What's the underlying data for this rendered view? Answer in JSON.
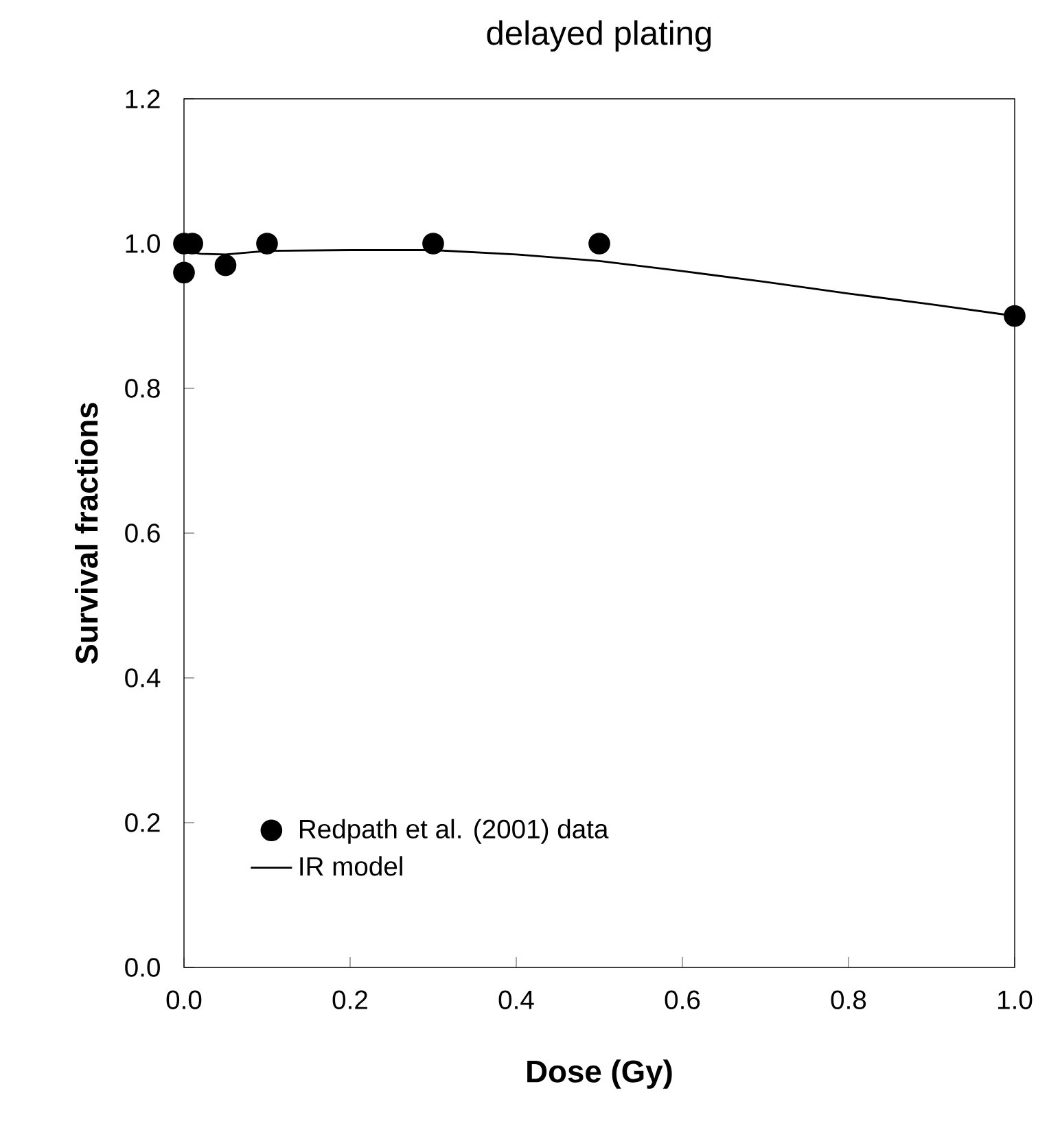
{
  "chart_data": {
    "type": "scatter",
    "title": "delayed plating",
    "xlabel": "Dose (Gy)",
    "ylabel": "Survival fractions",
    "xlim": [
      0,
      1.0
    ],
    "ylim": [
      0,
      1.2
    ],
    "xticks": [
      {
        "value": 0,
        "label": "0.0"
      },
      0.2,
      0.4,
      0.6,
      0.8,
      {
        "value": 1.0,
        "label": "1.0"
      }
    ],
    "yticks": [
      {
        "value": 0,
        "label": "0.0"
      },
      0.2,
      0.4,
      0.6,
      0.8,
      {
        "value": 1.0,
        "label": "1.0"
      },
      1.2
    ],
    "legend": "bottom left",
    "grid": false,
    "series": [
      {
        "name": "Redpath et al. (2001) data",
        "marker": "circle",
        "color": "#000000",
        "x": [
          0,
          0,
          0.01,
          0.05,
          0.1,
          0.3,
          0.5,
          1.0
        ],
        "values": [
          1.0,
          0.96,
          1.0,
          0.97,
          1.0,
          1.0,
          1.0,
          0.9
        ]
      },
      {
        "name": "IR model",
        "type": "line",
        "marker": "none",
        "line_style": "solid",
        "color": "#000000",
        "x": [
          0,
          0.02,
          0.05,
          0.1,
          0.2,
          0.3,
          0.4,
          0.5,
          0.6,
          0.7,
          0.8,
          0.9,
          1.0
        ],
        "values": [
          0.99,
          0.986,
          0.985,
          0.99,
          0.991,
          0.991,
          0.985,
          0.976,
          0.962,
          0.947,
          0.931,
          0.916,
          0.9
        ]
      }
    ]
  }
}
